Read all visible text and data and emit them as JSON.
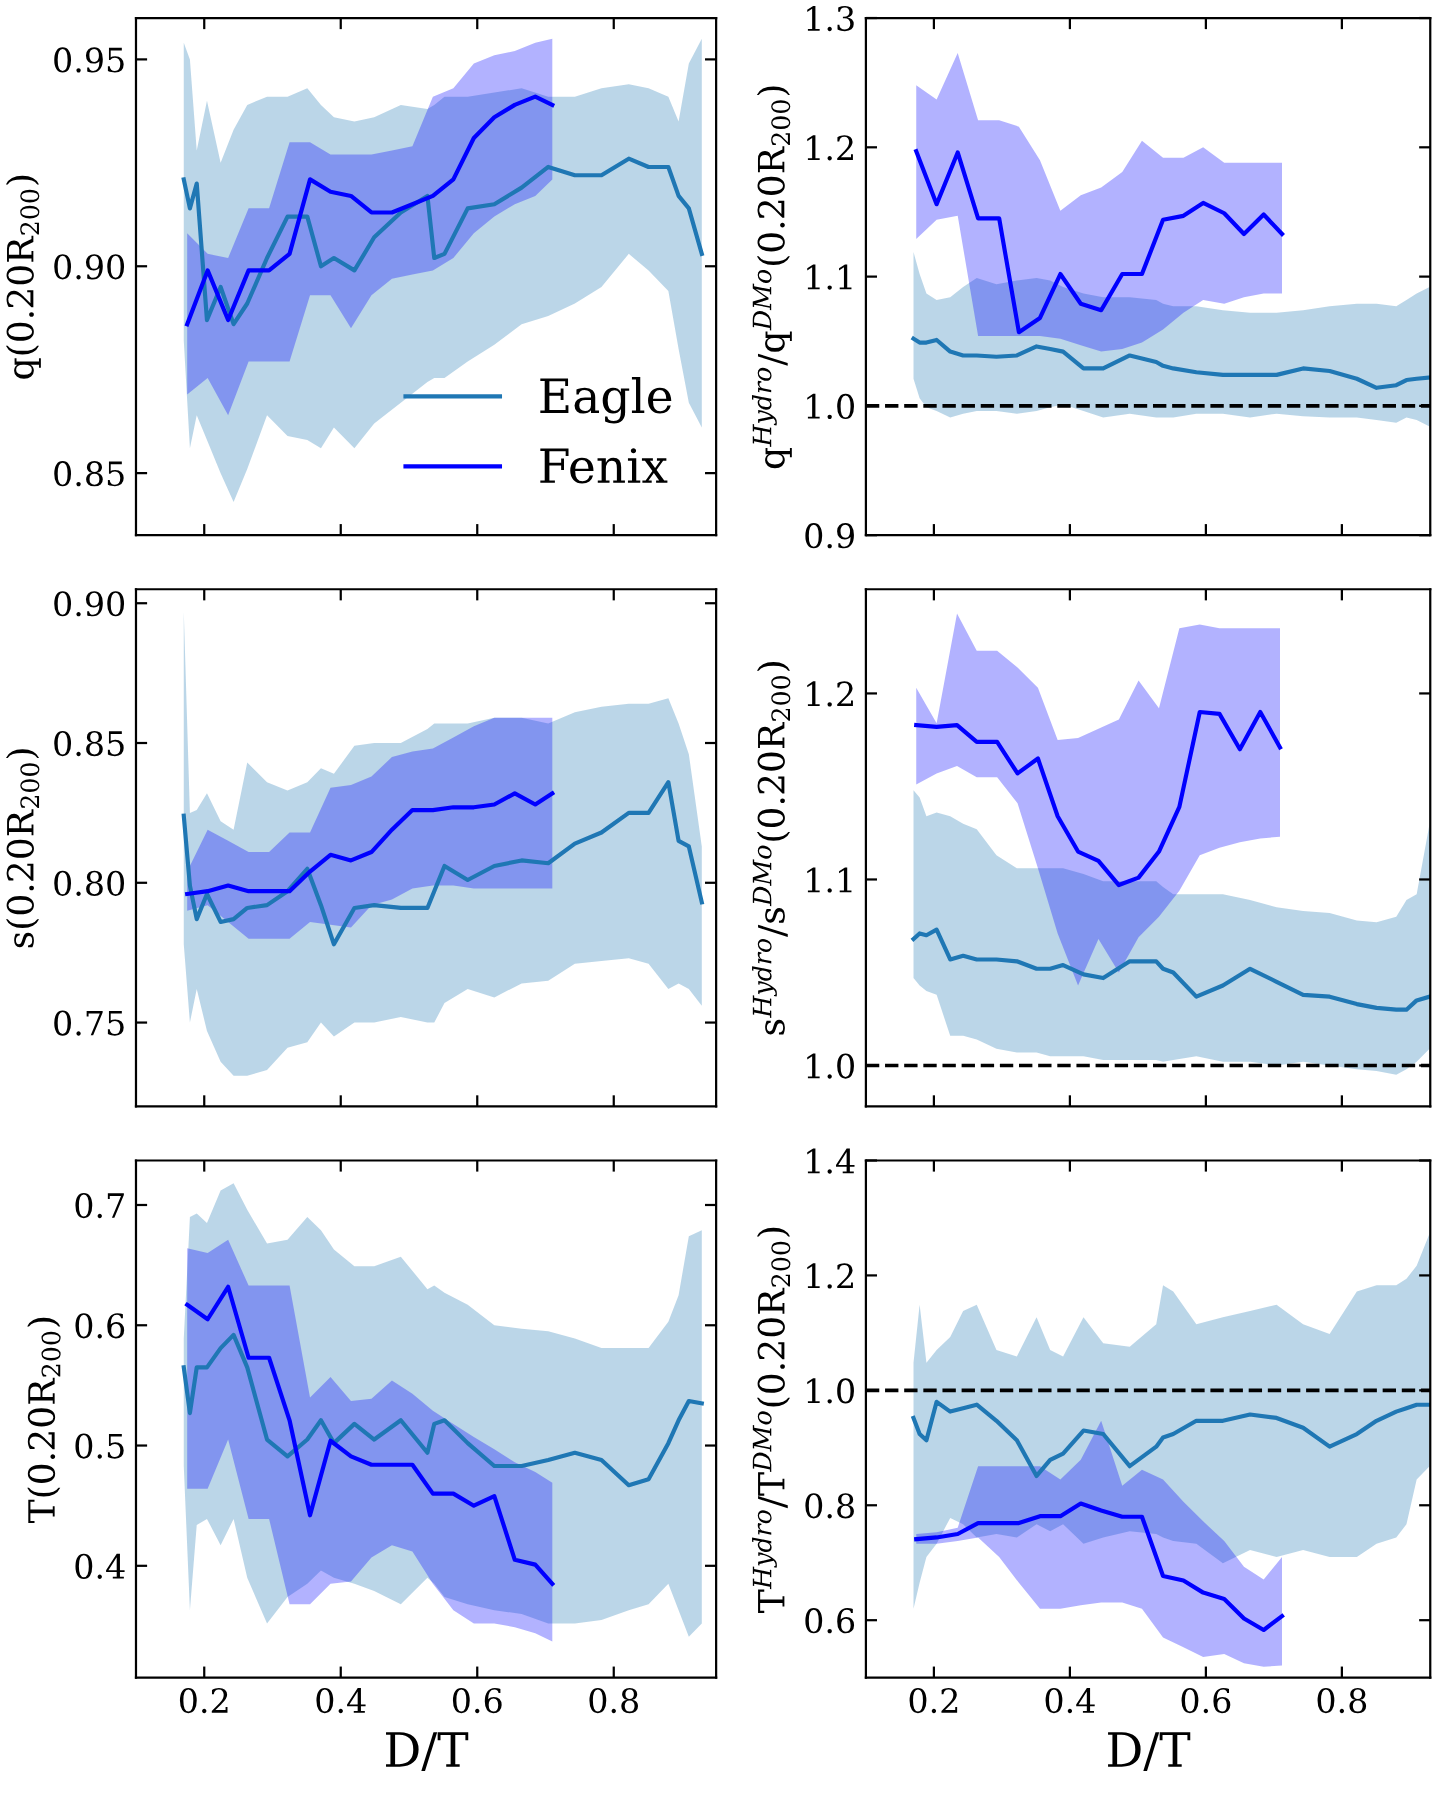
{
  "chart_data": [
    {
      "type": "line",
      "ylabel": "q(0.20R$_{200}$)",
      "xlim": [
        0.1,
        0.95
      ],
      "ylim": [
        0.835,
        0.96
      ],
      "xticks": [
        {
          "value": 0.2,
          "label": null
        },
        {
          "value": 0.4,
          "label": null
        },
        {
          "value": 0.6,
          "label": null
        },
        {
          "value": 0.8,
          "label": null
        }
      ],
      "yticks": [
        {
          "value": 0.85,
          "label": "0.85"
        },
        {
          "value": 0.9,
          "label": "0.90"
        },
        {
          "value": 0.95,
          "label": "0.95"
        }
      ],
      "tick_labels": "y",
      "legend": "bottom right",
      "series": [
        {
          "name": "Eagle",
          "color": "#1f77b4",
          "x": [
            0.17,
            0.179,
            0.189,
            0.204,
            0.224,
            0.243,
            0.263,
            0.292,
            0.322,
            0.351,
            0.371,
            0.39,
            0.42,
            0.449,
            0.488,
            0.527,
            0.537,
            0.552,
            0.586,
            0.625,
            0.665,
            0.704,
            0.743,
            0.782,
            0.822,
            0.851,
            0.88,
            0.895,
            0.91,
            0.929
          ],
          "values": [
            0.921,
            0.914,
            0.92,
            0.887,
            0.895,
            0.886,
            0.891,
            0.902,
            0.912,
            0.912,
            0.9,
            0.902,
            0.899,
            0.907,
            0.913,
            0.917,
            0.902,
            0.903,
            0.914,
            0.915,
            0.919,
            0.924,
            0.922,
            0.922,
            0.926,
            0.924,
            0.924,
            0.917,
            0.914,
            0.903
          ],
          "upper": [
            0.954,
            0.95,
            0.928,
            0.94,
            0.925,
            0.933,
            0.939,
            0.941,
            0.941,
            0.943,
            0.939,
            0.936,
            0.935,
            0.936,
            0.939,
            0.938,
            0.939,
            0.941,
            0.941,
            0.942,
            0.943,
            0.941,
            0.941,
            0.943,
            0.944,
            0.943,
            0.941,
            0.935,
            0.949,
            0.955
          ],
          "lower": [
            0.882,
            0.856,
            0.864,
            0.858,
            0.85,
            0.843,
            0.851,
            0.864,
            0.859,
            0.858,
            0.856,
            0.861,
            0.856,
            0.862,
            0.867,
            0.872,
            0.873,
            0.873,
            0.877,
            0.881,
            0.886,
            0.888,
            0.891,
            0.895,
            0.903,
            0.899,
            0.894,
            0.88,
            0.867,
            0.861
          ]
        },
        {
          "name": "Fenix",
          "color": "#0000ff",
          "x": [
            0.175,
            0.205,
            0.235,
            0.265,
            0.295,
            0.325,
            0.355,
            0.385,
            0.415,
            0.445,
            0.475,
            0.505,
            0.535,
            0.565,
            0.595,
            0.625,
            0.655,
            0.685,
            0.71
          ],
          "values": [
            0.886,
            0.899,
            0.887,
            0.899,
            0.899,
            0.903,
            0.921,
            0.918,
            0.917,
            0.913,
            0.913,
            0.915,
            0.917,
            0.921,
            0.931,
            0.936,
            0.939,
            0.941,
            0.939
          ],
          "upper": [
            0.908,
            0.903,
            0.902,
            0.914,
            0.914,
            0.93,
            0.93,
            0.927,
            0.927,
            0.927,
            0.928,
            0.929,
            0.941,
            0.943,
            0.949,
            0.951,
            0.952,
            0.954,
            0.955
          ],
          "lower": [
            0.869,
            0.873,
            0.864,
            0.877,
            0.877,
            0.877,
            0.893,
            0.893,
            0.885,
            0.893,
            0.897,
            0.898,
            0.899,
            0.902,
            0.908,
            0.912,
            0.915,
            0.917,
            0.921
          ]
        }
      ]
    },
    {
      "type": "line",
      "ylabel": "q$^{Hydro}$/q$^{DMo}$(0.20R$_{200}$)",
      "xlim": [
        0.1,
        0.93
      ],
      "ylim": [
        0.9,
        1.3
      ],
      "xticks": [
        {
          "value": 0.2,
          "label": null
        },
        {
          "value": 0.4,
          "label": null
        },
        {
          "value": 0.6,
          "label": null
        },
        {
          "value": 0.8,
          "label": null
        }
      ],
      "yticks": [
        {
          "value": 0.9,
          "label": "0.9"
        },
        {
          "value": 1.0,
          "label": "1.0"
        },
        {
          "value": 1.1,
          "label": "1.1"
        },
        {
          "value": 1.2,
          "label": "1.2"
        },
        {
          "value": 1.3,
          "label": "1.3"
        }
      ],
      "tick_labels": "y",
      "ref_lines": [
        {
          "axis": "y",
          "value": 1.0,
          "color": "#000000",
          "line_style": "dashed"
        }
      ],
      "series": [
        {
          "color": "#1f77b4",
          "x": [
            0.17,
            0.179,
            0.189,
            0.204,
            0.224,
            0.243,
            0.263,
            0.292,
            0.322,
            0.351,
            0.371,
            0.39,
            0.42,
            0.449,
            0.488,
            0.527,
            0.537,
            0.552,
            0.586,
            0.625,
            0.665,
            0.704,
            0.743,
            0.782,
            0.822,
            0.851,
            0.88,
            0.895,
            0.91,
            0.929
          ],
          "values": [
            1.052,
            1.049,
            1.049,
            1.051,
            1.042,
            1.039,
            1.039,
            1.038,
            1.039,
            1.046,
            1.044,
            1.042,
            1.029,
            1.029,
            1.039,
            1.034,
            1.031,
            1.029,
            1.026,
            1.024,
            1.024,
            1.024,
            1.029,
            1.027,
            1.021,
            1.014,
            1.016,
            1.02,
            1.021,
            1.022
          ],
          "upper": [
            1.119,
            1.102,
            1.087,
            1.082,
            1.084,
            1.092,
            1.099,
            1.094,
            1.097,
            1.099,
            1.097,
            1.092,
            1.087,
            1.084,
            1.084,
            1.082,
            1.079,
            1.077,
            1.077,
            1.074,
            1.072,
            1.072,
            1.074,
            1.077,
            1.079,
            1.079,
            1.077,
            1.082,
            1.087,
            1.092
          ],
          "lower": [
            1.021,
            1.006,
            0.999,
            0.996,
            0.991,
            0.994,
            0.996,
            0.996,
            0.994,
            0.996,
            0.999,
            1.001,
            0.996,
            0.991,
            0.994,
            0.991,
            0.991,
            0.991,
            0.994,
            0.994,
            0.991,
            0.994,
            0.992,
            0.991,
            0.991,
            0.989,
            0.987,
            0.991,
            0.989,
            0.984
          ]
        },
        {
          "color": "#0000ff",
          "x": [
            0.174,
            0.204,
            0.235,
            0.265,
            0.296,
            0.325,
            0.356,
            0.386,
            0.416,
            0.446,
            0.477,
            0.506,
            0.537,
            0.567,
            0.596,
            0.627,
            0.656,
            0.685,
            0.712
          ],
          "values": [
            1.197,
            1.156,
            1.196,
            1.145,
            1.145,
            1.057,
            1.068,
            1.102,
            1.079,
            1.074,
            1.102,
            1.102,
            1.144,
            1.147,
            1.157,
            1.149,
            1.133,
            1.148,
            1.133
          ],
          "upper": [
            1.248,
            1.237,
            1.273,
            1.221,
            1.221,
            1.216,
            1.19,
            1.151,
            1.163,
            1.169,
            1.181,
            1.205,
            1.192,
            1.192,
            1.2,
            1.188,
            1.188,
            1.188,
            1.188
          ],
          "lower": [
            1.129,
            1.144,
            1.147,
            1.054,
            1.054,
            1.054,
            1.054,
            1.052,
            1.047,
            1.042,
            1.044,
            1.049,
            1.059,
            1.072,
            1.082,
            1.079,
            1.084,
            1.087,
            1.087
          ]
        }
      ]
    },
    {
      "type": "line",
      "ylabel": "s(0.20R$_{200}$)",
      "xlim": [
        0.1,
        0.95
      ],
      "ylim": [
        0.72,
        0.905
      ],
      "xticks": [
        {
          "value": 0.2,
          "label": null
        },
        {
          "value": 0.4,
          "label": null
        },
        {
          "value": 0.6,
          "label": null
        },
        {
          "value": 0.8,
          "label": null
        }
      ],
      "yticks": [
        {
          "value": 0.75,
          "label": "0.75"
        },
        {
          "value": 0.8,
          "label": "0.80"
        },
        {
          "value": 0.85,
          "label": "0.85"
        },
        {
          "value": 0.9,
          "label": "0.90"
        }
      ],
      "tick_labels": "y",
      "series": [
        {
          "color": "#1f77b4",
          "x": [
            0.17,
            0.179,
            0.189,
            0.204,
            0.224,
            0.243,
            0.263,
            0.292,
            0.322,
            0.351,
            0.371,
            0.39,
            0.42,
            0.449,
            0.488,
            0.527,
            0.537,
            0.552,
            0.586,
            0.625,
            0.665,
            0.704,
            0.743,
            0.782,
            0.822,
            0.851,
            0.88,
            0.895,
            0.91,
            0.929
          ],
          "values": [
            0.824,
            0.799,
            0.787,
            0.796,
            0.786,
            0.787,
            0.791,
            0.792,
            0.797,
            0.805,
            0.792,
            0.778,
            0.791,
            0.792,
            0.791,
            0.791,
            0.797,
            0.806,
            0.801,
            0.806,
            0.808,
            0.807,
            0.814,
            0.818,
            0.825,
            0.825,
            0.836,
            0.815,
            0.813,
            0.793
          ],
          "upper": [
            0.897,
            0.825,
            0.826,
            0.832,
            0.822,
            0.819,
            0.843,
            0.836,
            0.833,
            0.836,
            0.841,
            0.839,
            0.849,
            0.85,
            0.85,
            0.855,
            0.857,
            0.857,
            0.857,
            0.859,
            0.859,
            0.857,
            0.861,
            0.863,
            0.864,
            0.864,
            0.866,
            0.857,
            0.846,
            0.813
          ],
          "lower": [
            0.778,
            0.75,
            0.762,
            0.747,
            0.736,
            0.731,
            0.731,
            0.733,
            0.741,
            0.743,
            0.75,
            0.745,
            0.75,
            0.75,
            0.752,
            0.75,
            0.75,
            0.757,
            0.762,
            0.759,
            0.764,
            0.765,
            0.771,
            0.772,
            0.773,
            0.771,
            0.762,
            0.764,
            0.762,
            0.756
          ]
        },
        {
          "color": "#0000ff",
          "x": [
            0.175,
            0.205,
            0.235,
            0.265,
            0.295,
            0.325,
            0.355,
            0.385,
            0.415,
            0.445,
            0.475,
            0.505,
            0.535,
            0.565,
            0.595,
            0.625,
            0.655,
            0.685,
            0.71
          ],
          "values": [
            0.796,
            0.797,
            0.799,
            0.797,
            0.797,
            0.797,
            0.804,
            0.81,
            0.808,
            0.811,
            0.819,
            0.826,
            0.826,
            0.827,
            0.827,
            0.828,
            0.832,
            0.828,
            0.832
          ],
          "upper": [
            0.804,
            0.819,
            0.815,
            0.811,
            0.811,
            0.818,
            0.818,
            0.834,
            0.835,
            0.838,
            0.845,
            0.847,
            0.848,
            0.852,
            0.856,
            0.859,
            0.859,
            0.859,
            0.859
          ],
          "lower": [
            0.79,
            0.792,
            0.786,
            0.78,
            0.78,
            0.78,
            0.786,
            0.785,
            0.784,
            0.792,
            0.794,
            0.798,
            0.799,
            0.799,
            0.798,
            0.798,
            0.798,
            0.798,
            0.798
          ]
        }
      ]
    },
    {
      "type": "line",
      "ylabel": "s$^{Hydro}$/s$^{DMo}$(0.20R$_{200}$)",
      "xlim": [
        0.1,
        0.93
      ],
      "ylim": [
        0.978,
        1.256
      ],
      "xticks": [
        {
          "value": 0.2,
          "label": null
        },
        {
          "value": 0.4,
          "label": null
        },
        {
          "value": 0.6,
          "label": null
        },
        {
          "value": 0.8,
          "label": null
        }
      ],
      "yticks": [
        {
          "value": 1.0,
          "label": "1.0"
        },
        {
          "value": 1.1,
          "label": "1.1"
        },
        {
          "value": 1.2,
          "label": "1.2"
        }
      ],
      "tick_labels": "y",
      "ref_lines": [
        {
          "axis": "y",
          "value": 1.0,
          "color": "#000000",
          "line_style": "dashed"
        }
      ],
      "series": [
        {
          "color": "#1f77b4",
          "x": [
            0.17,
            0.179,
            0.189,
            0.204,
            0.224,
            0.243,
            0.263,
            0.292,
            0.322,
            0.351,
            0.371,
            0.39,
            0.42,
            0.449,
            0.488,
            0.527,
            0.537,
            0.552,
            0.586,
            0.625,
            0.665,
            0.704,
            0.743,
            0.782,
            0.822,
            0.851,
            0.88,
            0.895,
            0.91,
            0.929
          ],
          "values": [
            1.068,
            1.071,
            1.07,
            1.073,
            1.057,
            1.059,
            1.057,
            1.057,
            1.056,
            1.052,
            1.052,
            1.054,
            1.049,
            1.047,
            1.056,
            1.056,
            1.052,
            1.05,
            1.037,
            1.043,
            1.052,
            1.045,
            1.038,
            1.037,
            1.033,
            1.031,
            1.03,
            1.03,
            1.035,
            1.037
          ],
          "upper": [
            1.148,
            1.144,
            1.134,
            1.136,
            1.134,
            1.13,
            1.127,
            1.113,
            1.106,
            1.106,
            1.106,
            1.106,
            1.103,
            1.099,
            1.099,
            1.099,
            1.096,
            1.092,
            1.092,
            1.092,
            1.089,
            1.085,
            1.083,
            1.082,
            1.078,
            1.077,
            1.08,
            1.089,
            1.092,
            1.13
          ],
          "lower": [
            1.047,
            1.043,
            1.04,
            1.038,
            1.016,
            1.016,
            1.014,
            1.009,
            1.007,
            1.007,
            1.005,
            1.005,
            1.005,
            1.003,
            1.003,
            1.003,
            1.002,
            1.003,
            1.005,
            1.002,
            1.002,
            1.0,
            1.002,
            1.0,
            0.998,
            0.997,
            0.995,
            0.998,
            1.002,
            1.009
          ]
        },
        {
          "color": "#0000ff",
          "x": [
            0.174,
            0.204,
            0.234,
            0.263,
            0.293,
            0.323,
            0.353,
            0.382,
            0.412,
            0.442,
            0.472,
            0.501,
            0.531,
            0.561,
            0.591,
            0.62,
            0.65,
            0.68,
            0.709
          ],
          "values": [
            1.183,
            1.182,
            1.183,
            1.174,
            1.174,
            1.157,
            1.165,
            1.134,
            1.115,
            1.11,
            1.097,
            1.101,
            1.115,
            1.139,
            1.19,
            1.189,
            1.17,
            1.19,
            1.171
          ],
          "upper": [
            1.203,
            1.184,
            1.243,
            1.223,
            1.223,
            1.214,
            1.203,
            1.175,
            1.176,
            1.181,
            1.186,
            1.207,
            1.192,
            1.235,
            1.237,
            1.235,
            1.235,
            1.235,
            1.235
          ],
          "lower": [
            1.151,
            1.157,
            1.161,
            1.155,
            1.155,
            1.141,
            1.106,
            1.071,
            1.043,
            1.068,
            1.05,
            1.069,
            1.08,
            1.094,
            1.113,
            1.117,
            1.12,
            1.122,
            1.123
          ]
        }
      ]
    },
    {
      "type": "line",
      "ylabel": "T(0.20R$_{200}$)",
      "xlabel": "D/T",
      "xlim": [
        0.1,
        0.95
      ],
      "ylim": [
        0.307,
        0.737
      ],
      "xticks": [
        0.2,
        0.4,
        0.6,
        0.8
      ],
      "yticks": [
        0.4,
        0.5,
        0.6,
        0.7
      ],
      "series": [
        {
          "color": "#1f77b4",
          "x": [
            0.17,
            0.179,
            0.189,
            0.204,
            0.224,
            0.243,
            0.263,
            0.292,
            0.322,
            0.351,
            0.371,
            0.39,
            0.42,
            0.449,
            0.488,
            0.527,
            0.537,
            0.552,
            0.586,
            0.625,
            0.665,
            0.704,
            0.743,
            0.782,
            0.822,
            0.851,
            0.88,
            0.895,
            0.91,
            0.929
          ],
          "values": [
            0.565,
            0.527,
            0.565,
            0.565,
            0.581,
            0.592,
            0.565,
            0.505,
            0.491,
            0.505,
            0.521,
            0.502,
            0.518,
            0.505,
            0.521,
            0.494,
            0.518,
            0.521,
            0.502,
            0.483,
            0.483,
            0.488,
            0.494,
            0.488,
            0.467,
            0.472,
            0.502,
            0.521,
            0.537,
            0.535
          ],
          "upper": [
            0.589,
            0.69,
            0.693,
            0.685,
            0.712,
            0.718,
            0.696,
            0.668,
            0.671,
            0.69,
            0.679,
            0.663,
            0.649,
            0.649,
            0.657,
            0.63,
            0.633,
            0.627,
            0.617,
            0.6,
            0.597,
            0.595,
            0.589,
            0.581,
            0.581,
            0.581,
            0.603,
            0.625,
            0.674,
            0.679
          ],
          "lower": [
            0.483,
            0.363,
            0.434,
            0.439,
            0.417,
            0.439,
            0.39,
            0.352,
            0.374,
            0.385,
            0.396,
            0.39,
            0.385,
            0.379,
            0.368,
            0.39,
            0.385,
            0.374,
            0.368,
            0.363,
            0.36,
            0.352,
            0.352,
            0.355,
            0.363,
            0.368,
            0.385,
            0.363,
            0.341,
            0.352
          ]
        },
        {
          "color": "#0000ff",
          "x": [
            0.175,
            0.205,
            0.235,
            0.265,
            0.295,
            0.325,
            0.355,
            0.385,
            0.415,
            0.445,
            0.475,
            0.505,
            0.535,
            0.565,
            0.595,
            0.625,
            0.655,
            0.685,
            0.71
          ],
          "values": [
            0.617,
            0.605,
            0.632,
            0.573,
            0.573,
            0.521,
            0.442,
            0.504,
            0.491,
            0.484,
            0.484,
            0.484,
            0.46,
            0.46,
            0.45,
            0.458,
            0.405,
            0.401,
            0.385
          ],
          "upper": [
            0.664,
            0.66,
            0.671,
            0.633,
            0.633,
            0.633,
            0.54,
            0.557,
            0.537,
            0.539,
            0.554,
            0.543,
            0.529,
            0.518,
            0.507,
            0.497,
            0.486,
            0.478,
            0.469
          ],
          "lower": [
            0.464,
            0.464,
            0.505,
            0.439,
            0.439,
            0.368,
            0.368,
            0.385,
            0.387,
            0.407,
            0.417,
            0.412,
            0.385,
            0.363,
            0.352,
            0.352,
            0.349,
            0.344,
            0.337
          ]
        }
      ]
    },
    {
      "type": "line",
      "ylabel": "T$^{Hydro}$/T$^{DMo}$(0.20R$_{200}$)",
      "xlabel": "D/T",
      "xlim": [
        0.1,
        0.93
      ],
      "ylim": [
        0.5,
        1.4
      ],
      "xticks": [
        0.2,
        0.4,
        0.6,
        0.8
      ],
      "yticks": [
        0.6,
        0.8,
        {
          "value": 1.0,
          "label": "1.0"
        },
        1.2,
        1.4
      ],
      "ref_lines": [
        {
          "axis": "y",
          "value": 1.0,
          "color": "#000000",
          "line_style": "dashed"
        }
      ],
      "series": [
        {
          "color": "#1f77b4",
          "x": [
            0.17,
            0.179,
            0.189,
            0.204,
            0.224,
            0.243,
            0.263,
            0.292,
            0.322,
            0.351,
            0.371,
            0.39,
            0.42,
            0.449,
            0.488,
            0.527,
            0.537,
            0.552,
            0.586,
            0.625,
            0.665,
            0.704,
            0.743,
            0.782,
            0.822,
            0.851,
            0.88,
            0.895,
            0.91,
            0.929
          ],
          "values": [
            0.952,
            0.924,
            0.913,
            0.98,
            0.963,
            0.969,
            0.975,
            0.947,
            0.913,
            0.851,
            0.879,
            0.89,
            0.93,
            0.924,
            0.868,
            0.902,
            0.918,
            0.924,
            0.947,
            0.947,
            0.958,
            0.952,
            0.935,
            0.902,
            0.924,
            0.947,
            0.963,
            0.969,
            0.975,
            0.975
          ],
          "upper": [
            1.048,
            1.149,
            1.048,
            1.07,
            1.093,
            1.138,
            1.149,
            1.07,
            1.059,
            1.127,
            1.07,
            1.059,
            1.127,
            1.082,
            1.076,
            1.115,
            1.183,
            1.172,
            1.115,
            1.127,
            1.138,
            1.149,
            1.115,
            1.098,
            1.172,
            1.183,
            1.183,
            1.194,
            1.217,
            1.273
          ],
          "lower": [
            0.62,
            0.665,
            0.71,
            0.733,
            0.778,
            0.767,
            0.744,
            0.75,
            0.744,
            0.767,
            0.755,
            0.767,
            0.733,
            0.744,
            0.755,
            0.75,
            0.744,
            0.738,
            0.733,
            0.699,
            0.722,
            0.71,
            0.722,
            0.71,
            0.71,
            0.733,
            0.744,
            0.767,
            0.845,
            0.868
          ]
        },
        {
          "color": "#0000ff",
          "x": [
            0.174,
            0.204,
            0.235,
            0.265,
            0.296,
            0.325,
            0.356,
            0.386,
            0.416,
            0.446,
            0.477,
            0.506,
            0.537,
            0.567,
            0.596,
            0.627,
            0.656,
            0.685,
            0.712
          ],
          "values": [
            0.741,
            0.744,
            0.75,
            0.769,
            0.769,
            0.769,
            0.781,
            0.781,
            0.803,
            0.791,
            0.78,
            0.78,
            0.677,
            0.669,
            0.648,
            0.637,
            0.603,
            0.583,
            0.607
          ],
          "upper": [
            0.75,
            0.753,
            0.761,
            0.868,
            0.868,
            0.868,
            0.868,
            0.845,
            0.879,
            0.947,
            0.834,
            0.862,
            0.845,
            0.806,
            0.772,
            0.738,
            0.693,
            0.671,
            0.71
          ],
          "lower": [
            0.733,
            0.733,
            0.738,
            0.744,
            0.71,
            0.665,
            0.62,
            0.62,
            0.626,
            0.631,
            0.631,
            0.62,
            0.57,
            0.553,
            0.536,
            0.541,
            0.525,
            0.519,
            0.521
          ]
        }
      ]
    }
  ]
}
